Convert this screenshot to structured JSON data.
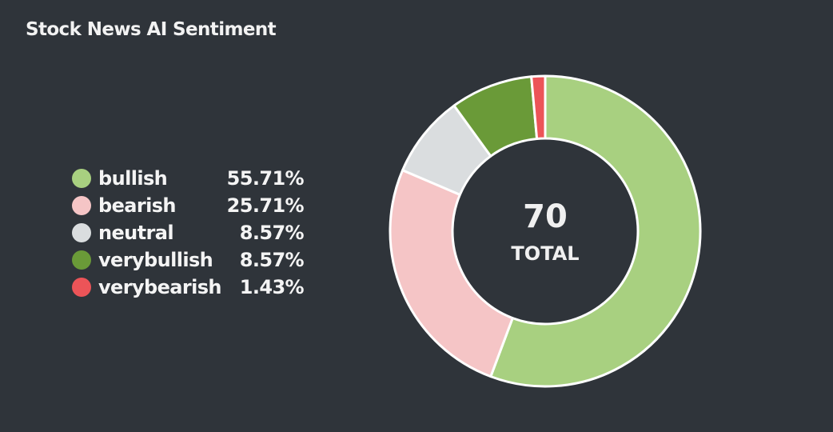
{
  "title": "Stock News AI Sentiment",
  "chart_data": {
    "type": "pie",
    "title": "Stock News AI Sentiment",
    "categories": [
      "bullish",
      "bearish",
      "neutral",
      "verybullish",
      "verybearish"
    ],
    "values": [
      39,
      18,
      6,
      6,
      1
    ],
    "percent_labels": [
      "55.71%",
      "25.71%",
      "8.57%",
      "8.57%",
      "1.43%"
    ],
    "colors": [
      "#a8d080",
      "#f5c5c6",
      "#dadddf",
      "#6a9a38",
      "#ec5458"
    ],
    "total": "70",
    "total_label": "TOTAL",
    "legend_position": "left"
  }
}
